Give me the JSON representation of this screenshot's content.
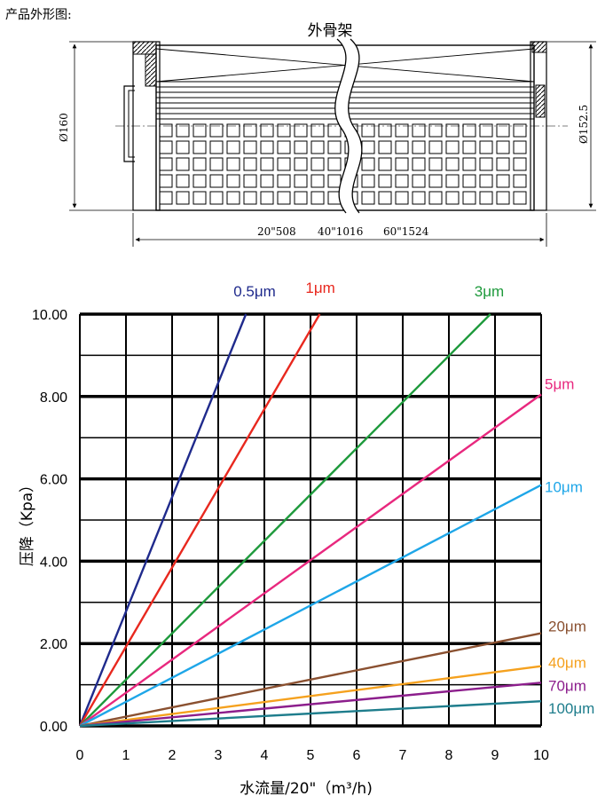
{
  "section_title": "产品外形图:",
  "drawing": {
    "frame_label": "外骨架",
    "diameter_left": "Ø160",
    "diameter_right": "Ø152.5",
    "length_labels": [
      "20\"508",
      "40\"1016",
      "60\"1524"
    ]
  },
  "chart_data": {
    "type": "line",
    "title": "",
    "xlabel": "水流量/20\"（m³/h)",
    "ylabel": "压降（Kpa）",
    "xlim": [
      0,
      10
    ],
    "ylim": [
      0,
      10
    ],
    "x_ticks": [
      "0",
      "1",
      "2",
      "3",
      "4",
      "5",
      "6",
      "7",
      "8",
      "9",
      "10"
    ],
    "y_ticks": [
      "0.00",
      "2.00",
      "4.00",
      "6.00",
      "8.00",
      "10.00"
    ],
    "grid": true,
    "series": [
      {
        "name": "0.5μm",
        "color": "#1f2a8c",
        "x": [
          0,
          3.6
        ],
        "y": [
          0,
          10
        ]
      },
      {
        "name": "1μm",
        "color": "#e8281e",
        "x": [
          0,
          5.2
        ],
        "y": [
          0,
          10
        ]
      },
      {
        "name": "3μm",
        "color": "#1e9a3c",
        "x": [
          0,
          8.9
        ],
        "y": [
          0,
          10
        ]
      },
      {
        "name": "5μm",
        "color": "#e8287e",
        "x": [
          0,
          10
        ],
        "y": [
          0,
          8.05
        ]
      },
      {
        "name": "10μm",
        "color": "#1ea6e8",
        "x": [
          0,
          10
        ],
        "y": [
          0,
          5.85
        ]
      },
      {
        "name": "20μm",
        "color": "#8a5030",
        "x": [
          0,
          10
        ],
        "y": [
          0,
          2.25
        ]
      },
      {
        "name": "40μm",
        "color": "#f5a11e",
        "x": [
          0,
          10
        ],
        "y": [
          0,
          1.45
        ]
      },
      {
        "name": "70μm",
        "color": "#8c1e8c",
        "x": [
          0,
          10
        ],
        "y": [
          0,
          1.05
        ]
      },
      {
        "name": "100μm",
        "color": "#1e7d8c",
        "x": [
          0,
          10
        ],
        "y": [
          0,
          0.6
        ]
      }
    ]
  }
}
